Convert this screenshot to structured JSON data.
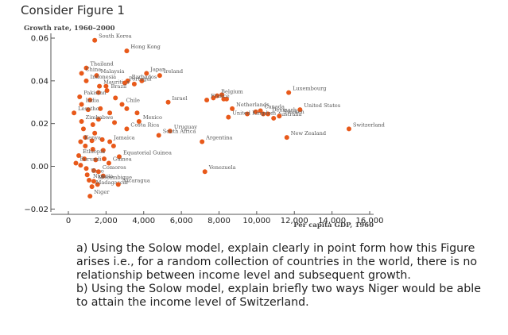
{
  "heading": "Consider Figure 1",
  "questions": [
    "a) Using the Solow model, explain clearly in point form how this Figure arises i.e., for a random collection of countries in the world, there is no relationship between income level and subsequent growth.",
    "b) Using the Solow model, explain briefly two ways Niger would be able to attain the income level of Switzerland."
  ],
  "colors": {
    "marker": "#e8591a",
    "axis": "#555555",
    "text": "#222222"
  },
  "chart_data": {
    "type": "scatter",
    "ylabel": "Growth rate, 1960–2000",
    "xlabel": "Per capita GDP, 1960",
    "xlim": [
      -500,
      16500
    ],
    "ylim": [
      -0.022,
      0.062
    ],
    "x_ticks": [
      0,
      2000,
      4000,
      6000,
      8000,
      10000,
      12000,
      14000,
      16000
    ],
    "x_tick_labels": [
      "0",
      "2,000",
      "4,000",
      "6,000",
      "8,000",
      "10,000",
      "12,000",
      "14,000",
      "16,000"
    ],
    "y_ticks": [
      -0.02,
      0,
      0.02,
      0.04,
      0.06
    ],
    "y_tick_labels": [
      "−0.02",
      "0.00",
      "0.02",
      "0.04",
      "0.06"
    ],
    "grid": false,
    "points": [
      {
        "label": "South Korea",
        "x": 1400,
        "y": 0.059
      },
      {
        "label": "Hong Kong",
        "x": 3100,
        "y": 0.054
      },
      {
        "label": "Thailand",
        "x": 950,
        "y": 0.046
      },
      {
        "label": "China",
        "x": 700,
        "y": 0.0435
      },
      {
        "label": "Malaysia",
        "x": 1500,
        "y": 0.0425
      },
      {
        "label": "Japan",
        "x": 4150,
        "y": 0.0435
      },
      {
        "label": "Barbados",
        "x": 3150,
        "y": 0.04
      },
      {
        "label": "Ireland",
        "x": 4850,
        "y": 0.0425
      },
      {
        "label": "Indonesia",
        "x": 950,
        "y": 0.04
      },
      {
        "label": "Mauritius",
        "x": 1650,
        "y": 0.0375
      },
      {
        "label": "Portugal",
        "x": 3000,
        "y": 0.039
      },
      {
        "label": "Brazil",
        "x": 2050,
        "y": 0.0355
      },
      {
        "label": "Belgium",
        "x": 7900,
        "y": 0.033
      },
      {
        "label": "Luxembourg",
        "x": 11700,
        "y": 0.0345
      },
      {
        "label": "Pakistan",
        "x": 600,
        "y": 0.0325
      },
      {
        "label": "India",
        "x": 700,
        "y": 0.029
      },
      {
        "label": "Chile",
        "x": 2850,
        "y": 0.029
      },
      {
        "label": "Israel",
        "x": 5300,
        "y": 0.03
      },
      {
        "label": "France",
        "x": 7350,
        "y": 0.031
      },
      {
        "label": "Netherlands",
        "x": 8700,
        "y": 0.027
      },
      {
        "label": "Canada",
        "x": 10200,
        "y": 0.026
      },
      {
        "label": "United States",
        "x": 12300,
        "y": 0.0265
      },
      {
        "label": "Lesotho",
        "x": 300,
        "y": 0.025
      },
      {
        "label": "Denmark",
        "x": 10600,
        "y": 0.0245
      },
      {
        "label": "Zimbabwe",
        "x": 700,
        "y": 0.021
      },
      {
        "label": "Mexico",
        "x": 3750,
        "y": 0.021
      },
      {
        "label": "United Kingdom",
        "x": 8500,
        "y": 0.023
      },
      {
        "label": "Australia",
        "x": 10900,
        "y": 0.0225
      },
      {
        "label": "Sweden",
        "x": 11200,
        "y": 0.0235
      },
      {
        "label": "Switzerland",
        "x": 14900,
        "y": 0.0175
      },
      {
        "label": "Costa Rica",
        "x": 3100,
        "y": 0.0175
      },
      {
        "label": "Uruguay",
        "x": 5400,
        "y": 0.0165
      },
      {
        "label": "New Zealand",
        "x": 11600,
        "y": 0.0135
      },
      {
        "label": "Kenya",
        "x": 650,
        "y": 0.0115
      },
      {
        "label": "Jamaica",
        "x": 2200,
        "y": 0.0115
      },
      {
        "label": "South Africa",
        "x": 4800,
        "y": 0.0145
      },
      {
        "label": "Argentina",
        "x": 7100,
        "y": 0.0115
      },
      {
        "label": "Ethiopia",
        "x": 550,
        "y": 0.005
      },
      {
        "label": "Equatorial Guinea",
        "x": 2700,
        "y": 0.0045
      },
      {
        "label": "Burundi",
        "x": 400,
        "y": 0.0015
      },
      {
        "label": "Guinea",
        "x": 2150,
        "y": 0.0015
      },
      {
        "label": "Venezuela",
        "x": 7250,
        "y": -0.0025
      },
      {
        "label": "Togo",
        "x": 1000,
        "y": -0.004
      },
      {
        "label": "Comoros",
        "x": 1600,
        "y": -0.0025
      },
      {
        "label": "Nigeria",
        "x": 1100,
        "y": -0.0065
      },
      {
        "label": "Mozambique",
        "x": 1350,
        "y": -0.007
      },
      {
        "label": "Madagascar",
        "x": 1250,
        "y": -0.0095
      },
      {
        "label": "Nicaragua",
        "x": 2650,
        "y": -0.0085
      },
      {
        "label": "Niger",
        "x": 1150,
        "y": -0.014
      }
    ],
    "unlabeled_points": [
      {
        "x": 2000,
        "y": 0.0375
      },
      {
        "x": 3500,
        "y": 0.0385
      },
      {
        "x": 3900,
        "y": 0.04
      },
      {
        "x": 2500,
        "y": 0.032
      },
      {
        "x": 3100,
        "y": 0.027
      },
      {
        "x": 3650,
        "y": 0.025
      },
      {
        "x": 1150,
        "y": 0.031
      },
      {
        "x": 1700,
        "y": 0.027
      },
      {
        "x": 2200,
        "y": 0.025
      },
      {
        "x": 1600,
        "y": 0.022
      },
      {
        "x": 1300,
        "y": 0.0195
      },
      {
        "x": 2450,
        "y": 0.0205
      },
      {
        "x": 1400,
        "y": 0.0155
      },
      {
        "x": 1800,
        "y": 0.0125
      },
      {
        "x": 1250,
        "y": 0.012
      },
      {
        "x": 900,
        "y": 0.0095
      },
      {
        "x": 1300,
        "y": 0.008
      },
      {
        "x": 1850,
        "y": 0.0075
      },
      {
        "x": 2400,
        "y": 0.0095
      },
      {
        "x": 850,
        "y": 0.0035
      },
      {
        "x": 1450,
        "y": 0.003
      },
      {
        "x": 1900,
        "y": 0.0035
      },
      {
        "x": 650,
        "y": 0.0005
      },
      {
        "x": 950,
        "y": -0.001
      },
      {
        "x": 1350,
        "y": -0.002
      },
      {
        "x": 1850,
        "y": -0.0045
      },
      {
        "x": 1550,
        "y": -0.0085
      },
      {
        "x": 8150,
        "y": 0.0335
      },
      {
        "x": 7700,
        "y": 0.032
      },
      {
        "x": 8250,
        "y": 0.0315
      },
      {
        "x": 8400,
        "y": 0.0315
      },
      {
        "x": 9500,
        "y": 0.0245
      },
      {
        "x": 9950,
        "y": 0.0255
      },
      {
        "x": 10350,
        "y": 0.0245
      },
      {
        "x": 1050,
        "y": 0.0265
      },
      {
        "x": 800,
        "y": 0.0175
      },
      {
        "x": 900,
        "y": 0.0135
      },
      {
        "x": 1600,
        "y": 0.0345
      }
    ]
  }
}
